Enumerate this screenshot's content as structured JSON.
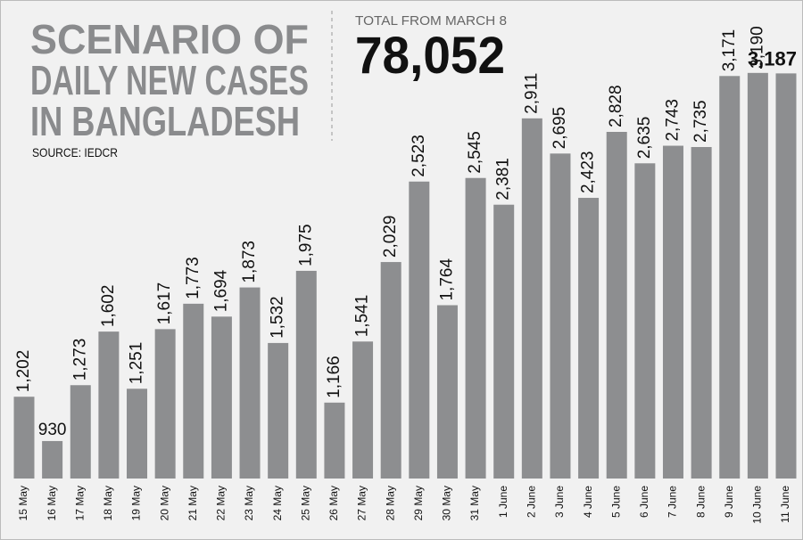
{
  "chart_data": {
    "type": "bar",
    "title_lines": [
      "SCENARIO OF",
      "DAILY NEW CASES",
      "IN BANGLADESH"
    ],
    "source": "SOURCE: IEDCR",
    "total_label": "TOTAL FROM MARCH 8",
    "total": "78,052",
    "categories": [
      "15 May",
      "16 May",
      "17 May",
      "18 May",
      "19 May",
      "20 May",
      "21 May",
      "22 May",
      "23 May",
      "24 May",
      "25 May",
      "26 May",
      "27 May",
      "28 May",
      "29 May",
      "30 May",
      "31 May",
      "1 June",
      "2 June",
      "3 June",
      "4 June",
      "5 June",
      "6 June",
      "7 June",
      "8 June",
      "9 June",
      "10 June",
      "11 June"
    ],
    "values": [
      1202,
      930,
      1273,
      1602,
      1251,
      1617,
      1773,
      1694,
      1873,
      1532,
      1975,
      1166,
      1541,
      2029,
      2523,
      1764,
      2545,
      2381,
      2911,
      2695,
      2423,
      2828,
      2635,
      2743,
      2735,
      3171,
      3190,
      3187
    ],
    "value_labels": [
      "1,202",
      "930",
      "1,273",
      "1,602",
      "1,251",
      "1,617",
      "1,773",
      "1,694",
      "1,873",
      "1,532",
      "1,975",
      "1,166",
      "1,541",
      "2,029",
      "2,523",
      "1,764",
      "2,545",
      "2,381",
      "2,911",
      "2,695",
      "2,423",
      "2,828",
      "2,635",
      "2,743",
      "2,735",
      "3,171",
      "3,190",
      "3,187"
    ],
    "color": "#8d8e90",
    "ylim": [
      700,
      3200
    ]
  }
}
